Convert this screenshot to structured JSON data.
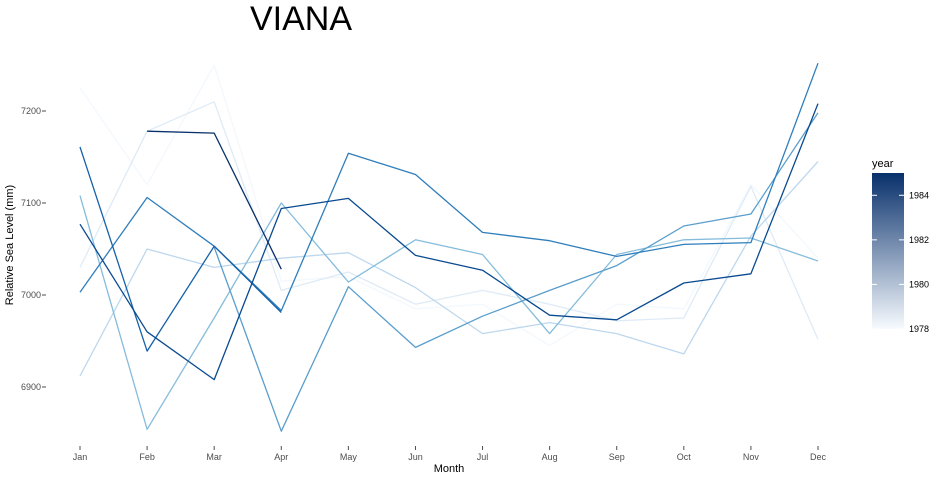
{
  "chart_data": {
    "type": "line",
    "title": "VIANA",
    "xlabel": "Month",
    "ylabel": "Relative Sea Level (mm)",
    "categories": [
      "Jan",
      "Feb",
      "Mar",
      "Apr",
      "May",
      "Jun",
      "Jul",
      "Aug",
      "Sep",
      "Oct",
      "Nov",
      "Dec"
    ],
    "ylim": [
      6840,
      7260
    ],
    "yticks": [
      6900,
      7000,
      7100,
      7200
    ],
    "ytick_labels": [
      "6900",
      "7000",
      "7100",
      "7200"
    ],
    "grid": false,
    "legend": {
      "title": "year",
      "position": "right",
      "type": "colorbar",
      "range": [
        1978,
        1985
      ],
      "ticks": [
        1978,
        1980,
        1982,
        1984
      ],
      "tick_labels": [
        "1978",
        "1980",
        "1982",
        "1984"
      ],
      "colors": [
        "#f7fbff",
        "#08306b"
      ]
    },
    "series": [
      {
        "year": 1978,
        "color": "#f3f8fd",
        "values": [
          7225,
          7120,
          7250,
          7015,
          7020,
          6985,
          6990,
          6945,
          6990,
          6985,
          7120,
          7040
        ]
      },
      {
        "year": 1979,
        "color": "#deebf7",
        "values": [
          7030,
          7178,
          7210,
          7005,
          7025,
          6990,
          7005,
          6990,
          6972,
          6975,
          7118,
          6952
        ]
      },
      {
        "year": 1980,
        "color": "#bdd7ee",
        "values": [
          6912,
          7050,
          7030,
          7040,
          7046,
          7008,
          6958,
          6970,
          6958,
          6936,
          7064,
          7145
        ]
      },
      {
        "year": 1981,
        "color": "#85bcdc",
        "values": [
          7108,
          6854,
          6975,
          7100,
          7014,
          7060,
          7044,
          6958,
          7044,
          7060,
          7062,
          7037
        ]
      },
      {
        "year": 1982,
        "color": "#5a9ecc",
        "values": [
          null,
          null,
          7052,
          6852,
          7009,
          6943,
          6977,
          7005,
          7032,
          7075,
          7088,
          7198
        ]
      },
      {
        "year": 1983,
        "color": "#2f7ebc",
        "values": [
          7003,
          7106,
          7053,
          6983,
          7154,
          7131,
          7068,
          7059,
          7042,
          7055,
          7057,
          7252
        ]
      },
      {
        "year": 1984,
        "color": "#1561a9",
        "values": [
          7161,
          6939,
          7053,
          6981,
          null,
          null,
          null,
          null,
          null,
          null,
          null,
          null
        ]
      },
      {
        "year": 1984.6,
        "color": "#0a4a90",
        "values": [
          7077,
          6960,
          6908,
          7094,
          7105,
          7043,
          7027,
          6978,
          6973,
          7013,
          7023,
          7208
        ]
      },
      {
        "year": 1985,
        "color": "#08306b",
        "values": [
          null,
          7178,
          7176,
          7028,
          null,
          null,
          null,
          null,
          null,
          null,
          null,
          null
        ]
      }
    ]
  }
}
